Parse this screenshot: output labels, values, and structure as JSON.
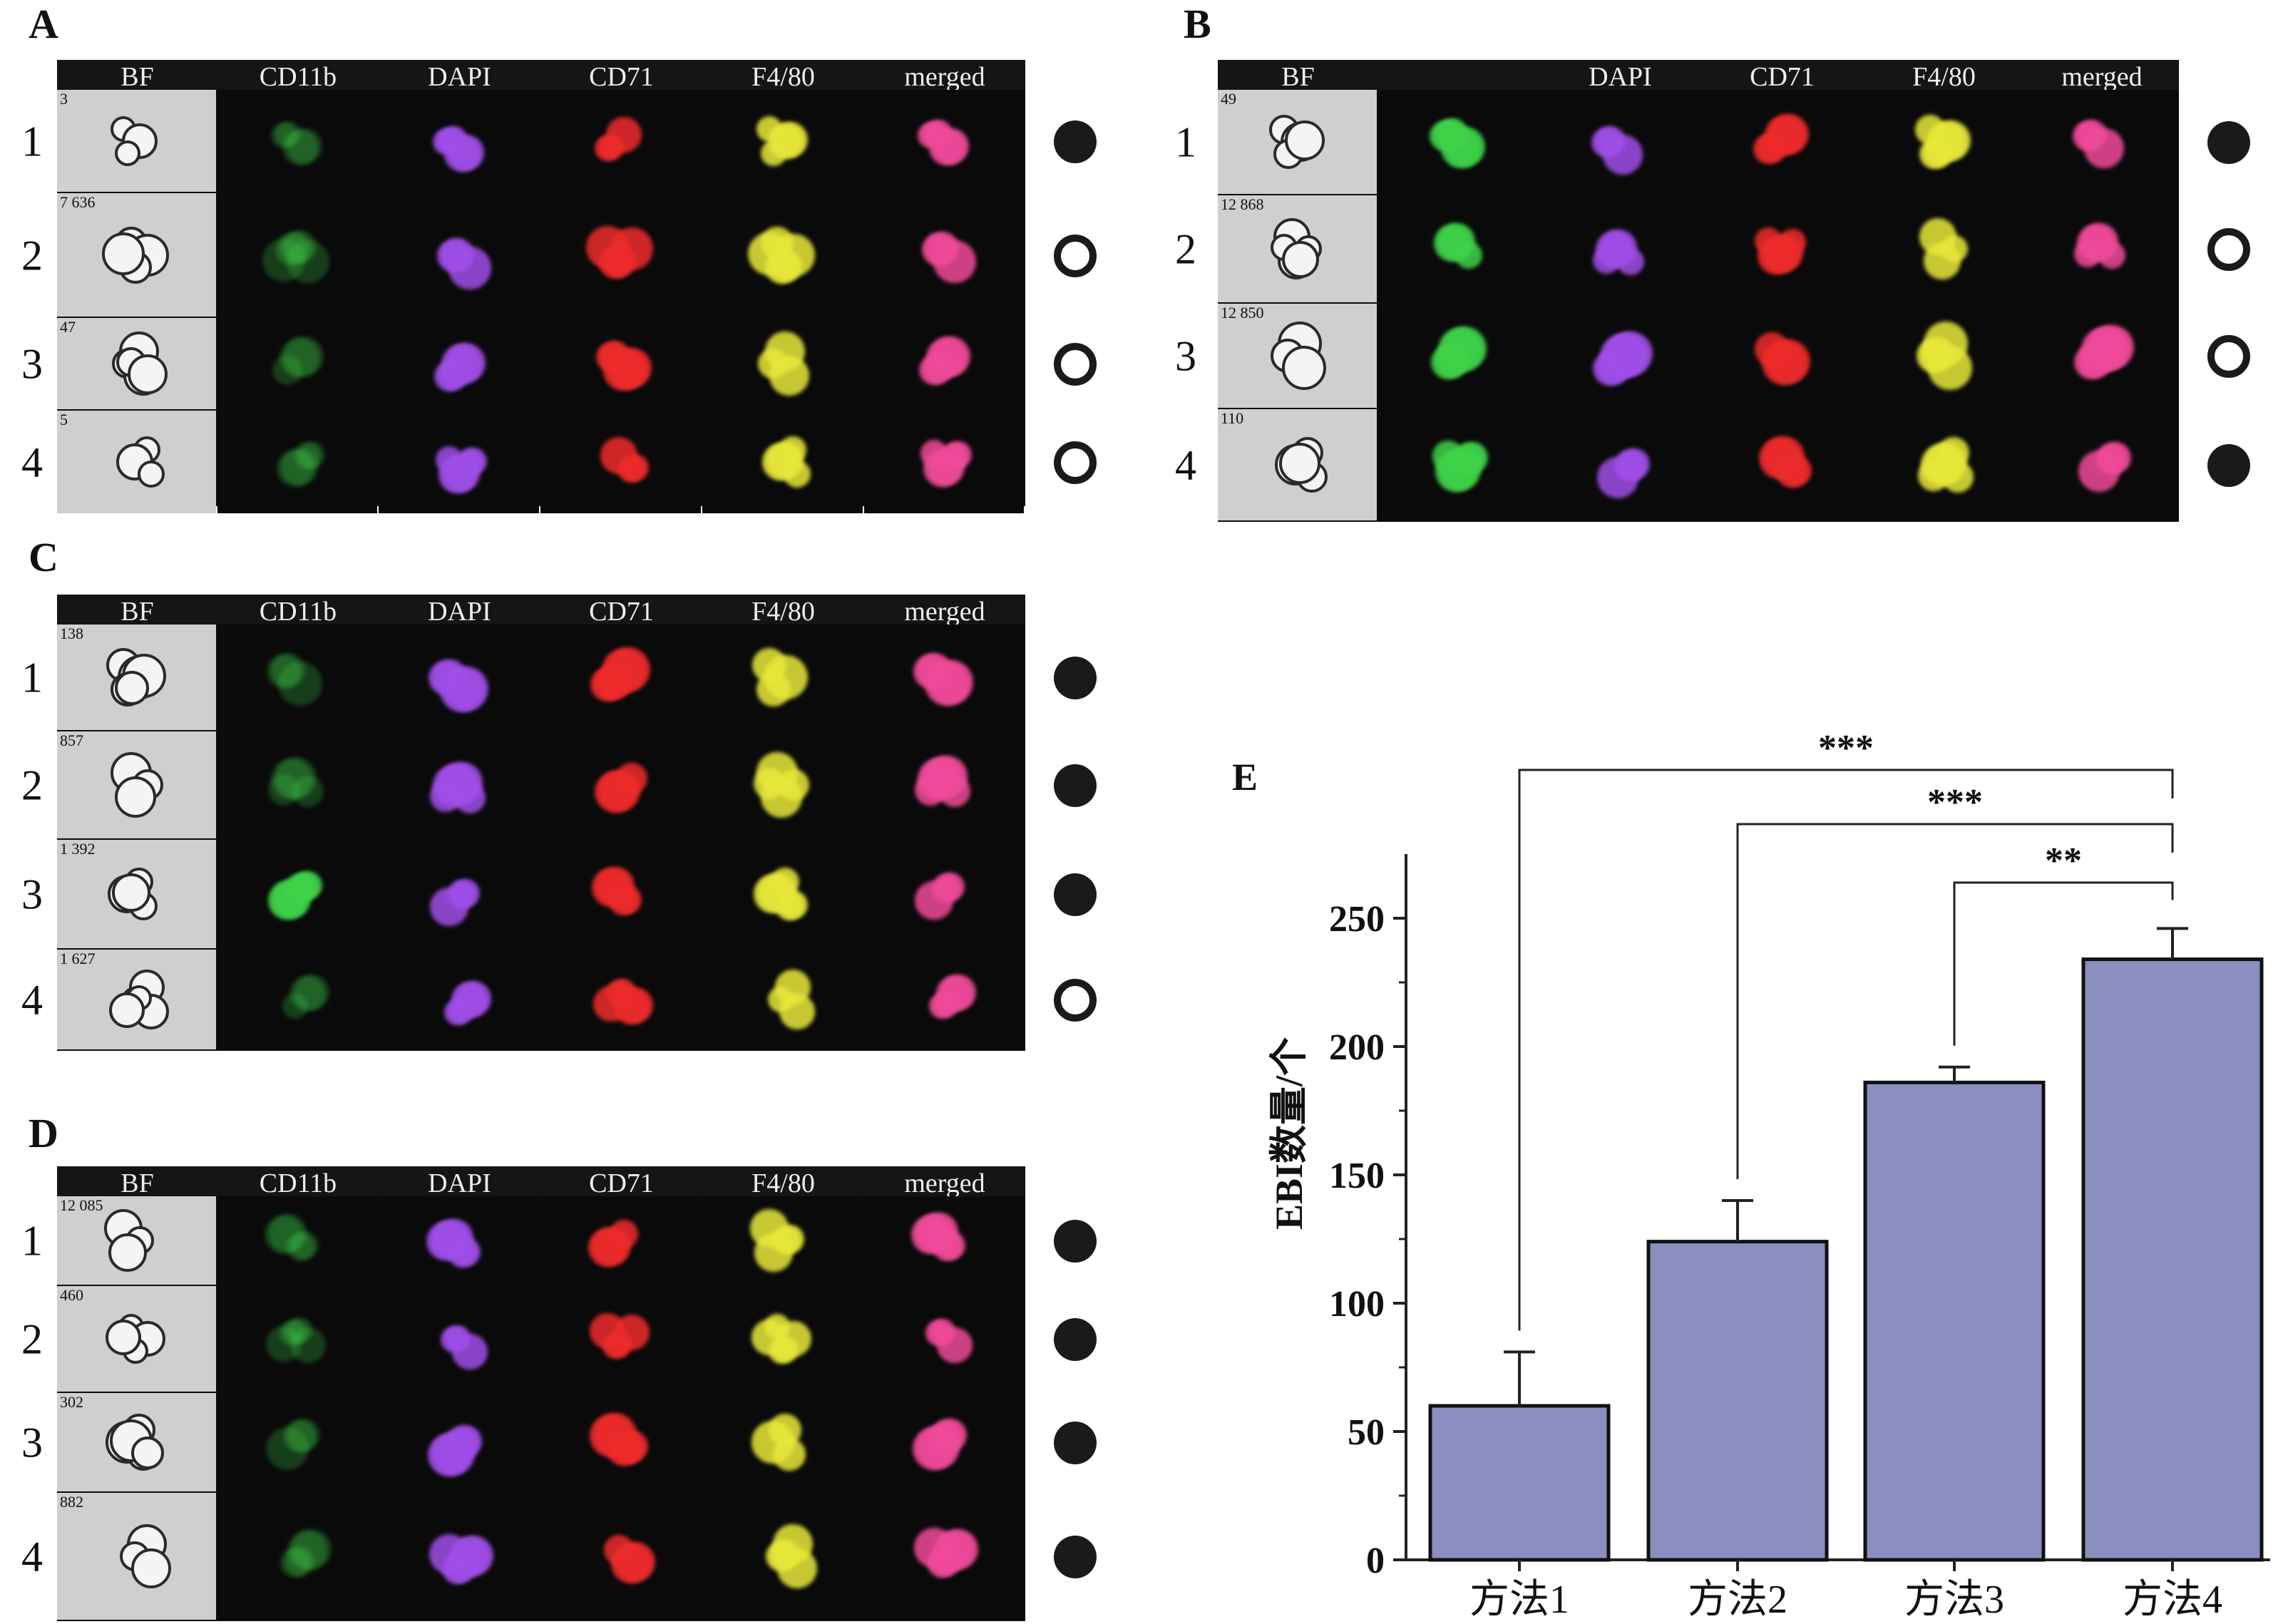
{
  "panels": [
    {
      "letter": "A",
      "headers": [
        "BF",
        "CD11b",
        "DAPI",
        "CD71",
        "F4/80",
        "merged"
      ],
      "rows": [
        {
          "n": "1",
          "idx": "3",
          "marker": "filled"
        },
        {
          "n": "2",
          "idx": "7 636",
          "marker": "open"
        },
        {
          "n": "3",
          "idx": "47",
          "marker": "open"
        },
        {
          "n": "4",
          "idx": "5",
          "marker": "open"
        }
      ]
    },
    {
      "letter": "B",
      "headers": [
        "BF",
        "",
        "DAPI",
        "CD71",
        "F4/80",
        "merged"
      ],
      "rows": [
        {
          "n": "1",
          "idx": "49",
          "marker": "filled"
        },
        {
          "n": "2",
          "idx": "12 868",
          "marker": "open"
        },
        {
          "n": "3",
          "idx": "12 850",
          "marker": "open"
        },
        {
          "n": "4",
          "idx": "110",
          "marker": "filled"
        }
      ]
    },
    {
      "letter": "C",
      "headers": [
        "BF",
        "CD11b",
        "DAPI",
        "CD71",
        "F4/80",
        "merged"
      ],
      "rows": [
        {
          "n": "1",
          "idx": "138",
          "marker": "filled"
        },
        {
          "n": "2",
          "idx": "857",
          "marker": "filled"
        },
        {
          "n": "3",
          "idx": "1 392",
          "marker": "filled"
        },
        {
          "n": "4",
          "idx": "1 627",
          "marker": "open"
        }
      ]
    },
    {
      "letter": "D",
      "headers": [
        "BF",
        "CD11b",
        "DAPI",
        "CD71",
        "F4/80",
        "merged"
      ],
      "rows": [
        {
          "n": "1",
          "idx": "12 085",
          "marker": "filled"
        },
        {
          "n": "2",
          "idx": "460",
          "marker": "filled"
        },
        {
          "n": "3",
          "idx": "302",
          "marker": "filled"
        },
        {
          "n": "4",
          "idx": "882",
          "marker": "filled"
        }
      ]
    }
  ],
  "channel_colors": [
    "#cfcfcf",
    "#3fd34a",
    "#a04ee8",
    "#ee2b2b",
    "#e8e83a",
    "#f04a9a"
  ],
  "chart_data": {
    "type": "bar",
    "panel_label": "E",
    "categories": [
      "方法1",
      "方法2",
      "方法3",
      "方法4"
    ],
    "values": [
      60,
      124,
      186,
      234
    ],
    "errors": [
      21,
      16,
      6,
      12
    ],
    "ylabel": "EBI数量/个",
    "ylim": [
      0,
      275
    ],
    "yticks": [
      0,
      50,
      100,
      150,
      200,
      250
    ],
    "bar_color": "#8a8fbf",
    "significance": [
      {
        "from": 0,
        "to": 3,
        "label": "***"
      },
      {
        "from": 1,
        "to": 3,
        "label": "***"
      },
      {
        "from": 2,
        "to": 3,
        "label": "**"
      }
    ]
  }
}
